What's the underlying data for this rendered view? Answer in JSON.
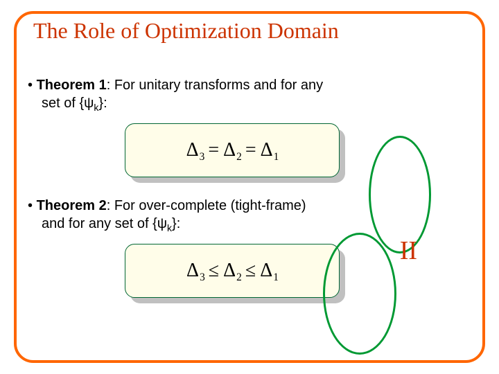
{
  "colors": {
    "frame": "#ff6600",
    "title": "#cc3300",
    "text": "#000000",
    "box_fill": "#fffde9",
    "box_border": "#006633",
    "ellipse": "#009933",
    "two": "#cc3300",
    "shadow": "#c0c0c0"
  },
  "title": "The Role of Optimization Domain",
  "bullet1": {
    "label": "Theorem 1",
    "rest": ": For unitary transforms and for any set of {ψ",
    "sub": "k",
    "tail": "}:"
  },
  "eq1": {
    "d3": "Δ",
    "s3": "3",
    "op1": "=",
    "d2": "Δ",
    "s2": "2",
    "op2": "=",
    "d1": "Δ",
    "s1": "1"
  },
  "bullet2": {
    "label": "Theorem 2",
    "rest": ":  For over-complete (tight-frame) and for any set of {ψ",
    "sub": "k",
    "tail": "}:"
  },
  "eq2": {
    "d3": "Δ",
    "s3": "3",
    "op1": "≤",
    "d2": "Δ",
    "s2": "2",
    "op2": "≤",
    "d1": "Δ",
    "s1": "1"
  },
  "two": "II"
}
